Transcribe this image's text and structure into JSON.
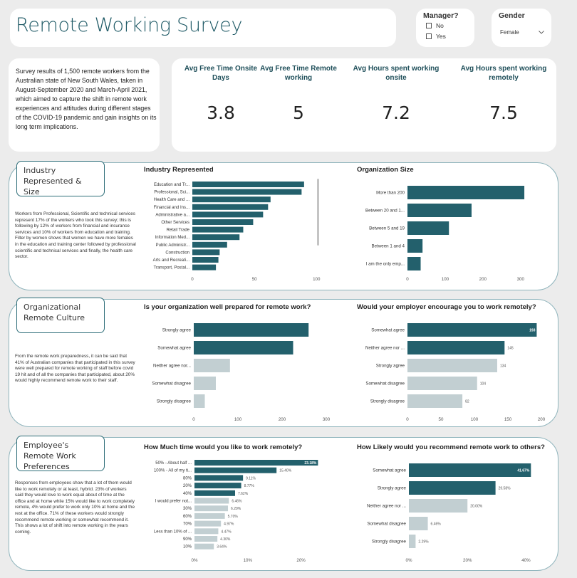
{
  "title": "Remote Working Survey",
  "slicers": {
    "manager": {
      "title": "Manager?",
      "options": [
        "No",
        "Yes"
      ]
    },
    "gender": {
      "title": "Gender",
      "selected": "Female"
    }
  },
  "description": "Survey results of 1,500 remote workers from the Australian state of New South Wales, taken in August-September 2020 and March-April 2021, which aimed to capture the shift in remote work experiences and attitudes during different stages of the COVID-19 pandemic and gain insights on its long term implications.",
  "kpis": [
    {
      "label": "Avg Free Time Onsite Days",
      "value": "3.8"
    },
    {
      "label": "Avg Free Time Remote working",
      "value": "5"
    },
    {
      "label": "Avg Hours spent working onsite",
      "value": "7.2"
    },
    {
      "label": "Avg Hours spent working remotely",
      "value": "7.5"
    }
  ],
  "sections": [
    {
      "header": "Industry Represented & Size",
      "text": "Workers from Professional, Scientific and technical services represent 17% of the workers who took this survey; this is following by 12% of workers from financial and insurance services and 10% of workers from education and training. Filter by women shows that women we have more females in the education and training center followed by professional scientific and technical services and finally, the health care sector."
    },
    {
      "header": "Organizational Remote Culture",
      "text": "From the remote work preparedness, it can be said that 41% of Australian companies that participated in this survey were well prepared for remote working of staff before covid 19 hit and of all the companies that participated, about 20% would highly recommend remote work to their staff."
    },
    {
      "header": "Employee's Remote Work Preferences",
      "text": "Responses from employees show that a lot of them would like to work remotely or at least, hybrid. 23% of workers said they would love to work equal about of time at the office and at home while 15% would like to work completely remote, 4% would prefer to work only 10% at home and the rest at the office. 71% of these workers would strongly recommend remote working or somewhat recommend it. This shows a lot of shift into remote working in the years coming."
    }
  ],
  "chart_data": [
    {
      "id": "industry",
      "type": "bar",
      "orientation": "horizontal",
      "title": "Industry Represented",
      "categories": [
        "Education and Tr...",
        "Professional, Sci...",
        "Health Care and ...",
        "Financial and Ins...",
        "Administrative a...",
        "Other Services",
        "Retail Trade",
        "Information Med...",
        "Public Administr...",
        "Construction",
        "Arts and Recreati...",
        "Transport, Postal..."
      ],
      "values": [
        90,
        88,
        63,
        61,
        57,
        49,
        41,
        38,
        28,
        22,
        21,
        19
      ],
      "xlim": [
        0,
        105
      ],
      "xticks": [
        "0",
        "50",
        "100"
      ],
      "tick_values": [
        0,
        50,
        100
      ],
      "bar_colors": [
        "#23606c"
      ],
      "value_labels": []
    },
    {
      "id": "orgsize",
      "type": "bar",
      "orientation": "horizontal",
      "title": "Organization Size",
      "categories": [
        "More than 200",
        "Between 20 and 1...",
        "Between 5 and 19",
        "Between 1 and 4",
        "I am the only emp..."
      ],
      "values": [
        310,
        170,
        110,
        40,
        35
      ],
      "xlim": [
        0,
        325
      ],
      "xticks": [
        "0",
        "100",
        "200",
        "300"
      ],
      "tick_values": [
        0,
        100,
        200,
        300
      ],
      "bar_colors": [
        "#23606c"
      ],
      "value_labels": []
    },
    {
      "id": "prepared",
      "type": "bar",
      "orientation": "horizontal",
      "title": "Is your organization well prepared for remote work?",
      "categories": [
        "Strongly agree",
        "Somewhat agree",
        "Neither agree nor...",
        "Somewhat disagree",
        "Strongly disagree"
      ],
      "values": [
        260,
        225,
        82,
        50,
        25
      ],
      "xlim": [
        0,
        300
      ],
      "xticks": [
        "0",
        "100",
        "200",
        "300"
      ],
      "tick_values": [
        0,
        100,
        200,
        300
      ],
      "bar_colors": [
        "#23606c",
        "#23606c",
        "#c2cfd2",
        "#c2cfd2",
        "#c2cfd2"
      ],
      "value_labels": []
    },
    {
      "id": "encourage",
      "type": "bar",
      "orientation": "horizontal",
      "title": "Would your employer encourage you to work remotely?",
      "categories": [
        "Somewhat agree",
        "Neither agree nor ...",
        "Strongly agree",
        "Somewhat disagree",
        "Strongly disagree"
      ],
      "values": [
        193,
        145,
        134,
        104,
        82
      ],
      "xlim": [
        0,
        200
      ],
      "xticks": [
        "0",
        "50",
        "100",
        "150",
        "200"
      ],
      "tick_values": [
        0,
        50,
        100,
        150,
        200
      ],
      "bar_colors": [
        "#23606c",
        "#23606c",
        "#c2cfd2",
        "#c2cfd2",
        "#c2cfd2"
      ],
      "value_labels": [
        "193",
        "145",
        "134",
        "104",
        "82"
      ]
    },
    {
      "id": "worktime",
      "type": "bar",
      "orientation": "horizontal",
      "title": "How Much time would you like to work remotely?",
      "categories": [
        "50% - About half ...",
        "100% - All of my ti...",
        "80%",
        "20%",
        "40%",
        "I would prefer not...",
        "30%",
        "60%",
        "70%",
        "Less than 10% of ...",
        "90%",
        "10%"
      ],
      "values": [
        23.18,
        15.4,
        9.11,
        8.77,
        7.62,
        6.46,
        6.29,
        5.7,
        4.97,
        4.47,
        4.3,
        3.64
      ],
      "xlim": [
        0,
        25
      ],
      "xticks": [
        "0%",
        "10%",
        "20%"
      ],
      "tick_values": [
        0,
        10,
        20
      ],
      "bar_colors": [
        "#23606c",
        "#23606c",
        "#23606c",
        "#23606c",
        "#23606c",
        "#c2cfd2",
        "#c2cfd2",
        "#c2cfd2",
        "#c2cfd2",
        "#c2cfd2",
        "#c2cfd2",
        "#c2cfd2"
      ],
      "value_labels": [
        "23.18%",
        "15.40%",
        "9.11%",
        "8.77%",
        "7.62%",
        "6.46%",
        "6.29%",
        "5.70%",
        "4.97%",
        "4.47%",
        "4.30%",
        "3.64%"
      ]
    },
    {
      "id": "recommend",
      "type": "bar",
      "orientation": "horizontal",
      "title": "How Likely would you recommend remote work to others?",
      "categories": [
        "Somewhat agree",
        "Strongly agree",
        "Neither agree nor ...",
        "Somewhat disagree",
        "Strongly disagree"
      ],
      "values": [
        41.67,
        29.58,
        20.0,
        6.46,
        2.29
      ],
      "xlim": [
        0,
        45
      ],
      "xticks": [
        "0%",
        "20%",
        "40%"
      ],
      "tick_values": [
        0,
        20,
        40
      ],
      "bar_colors": [
        "#23606c",
        "#23606c",
        "#c2cfd2",
        "#c2cfd2",
        "#c2cfd2"
      ],
      "value_labels": [
        "41.67%",
        "29.58%",
        "20.00%",
        "6.46%",
        "2.29%"
      ]
    }
  ]
}
